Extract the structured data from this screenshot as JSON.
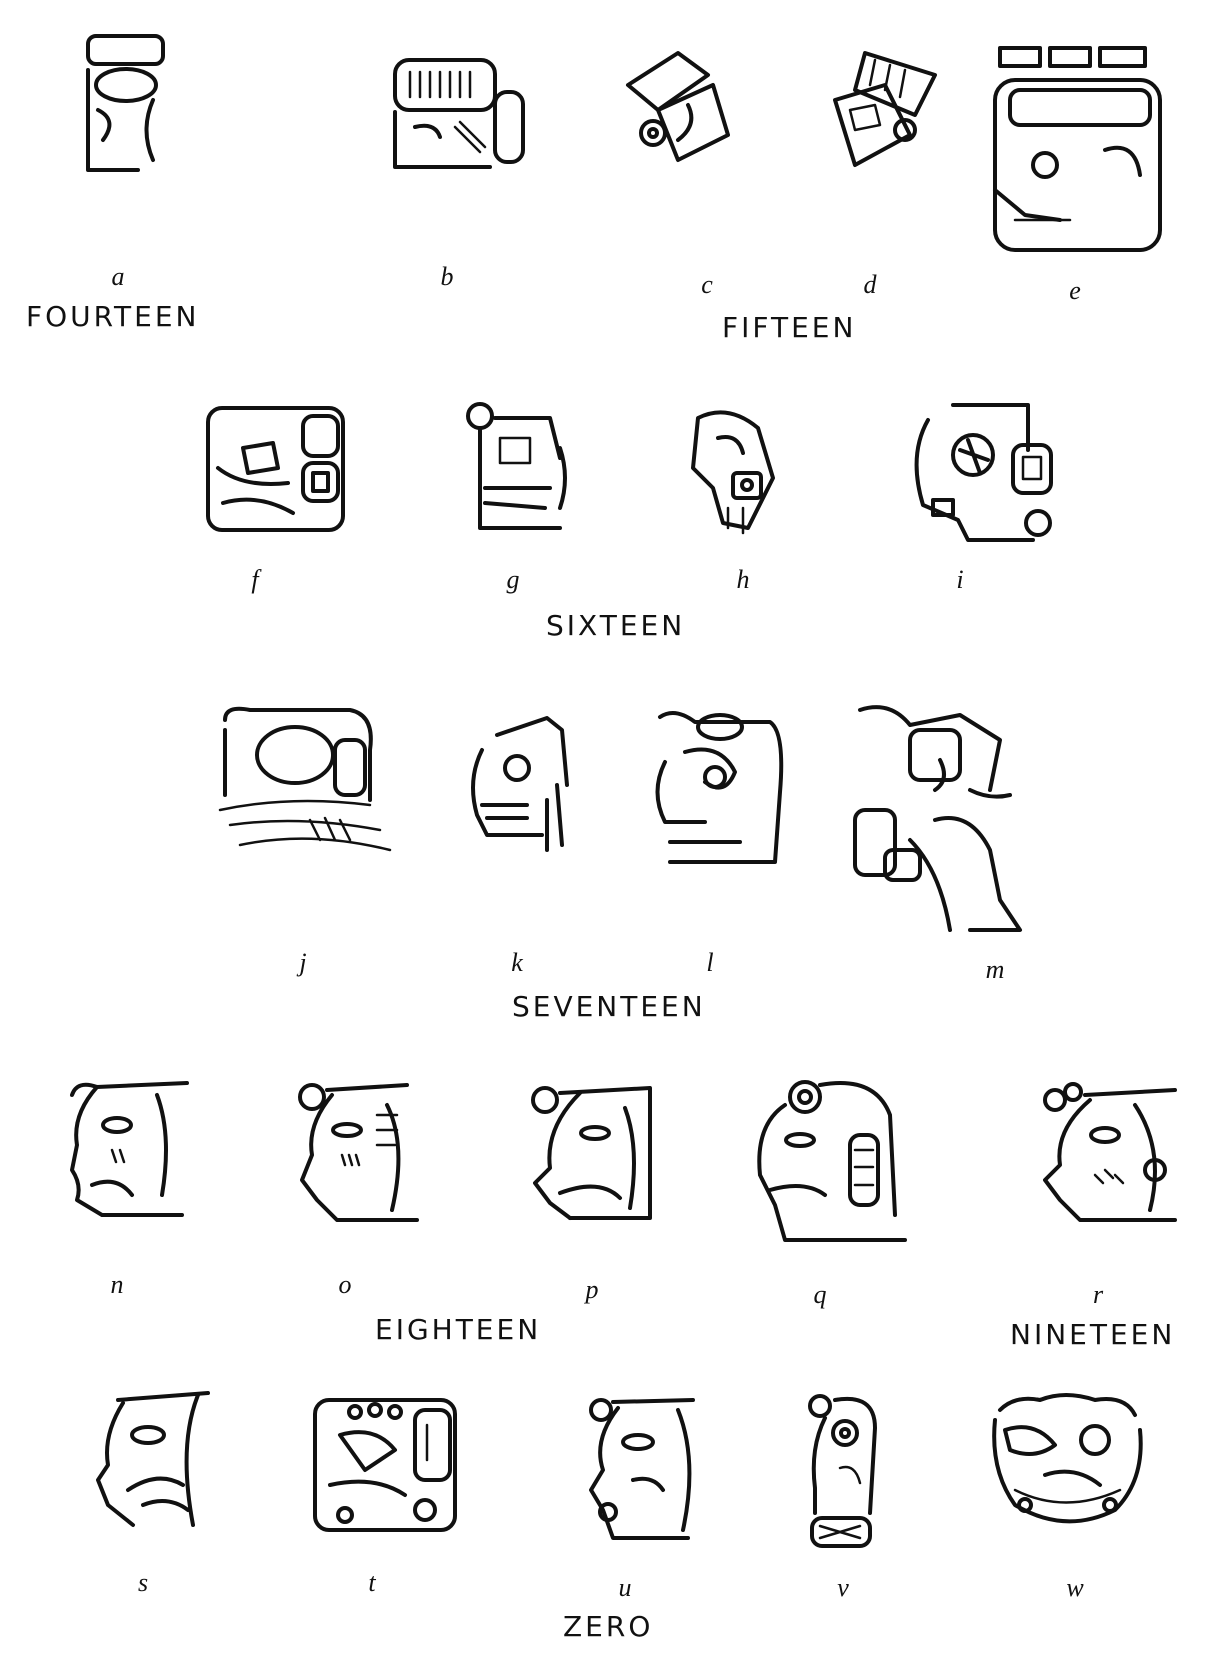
{
  "captions": {
    "fourteen": "FOURTEEN",
    "fifteen": "FIFTEEN",
    "sixteen": "SIXTEEN",
    "seventeen": "SEVENTEEN",
    "eighteen": "EIGHTEEN",
    "nineteen": "NINETEEN",
    "zero": "ZERO"
  },
  "letters": {
    "a": "a",
    "b": "b",
    "c": "c",
    "d": "d",
    "e": "e",
    "f": "f",
    "g": "g",
    "h": "h",
    "i": "i",
    "j": "j",
    "k": "k",
    "l": "l",
    "m": "m",
    "n": "n",
    "o": "o",
    "p": "p",
    "q": "q",
    "r": "r",
    "s": "s",
    "t": "t",
    "u": "u",
    "v": "v",
    "w": "w"
  }
}
